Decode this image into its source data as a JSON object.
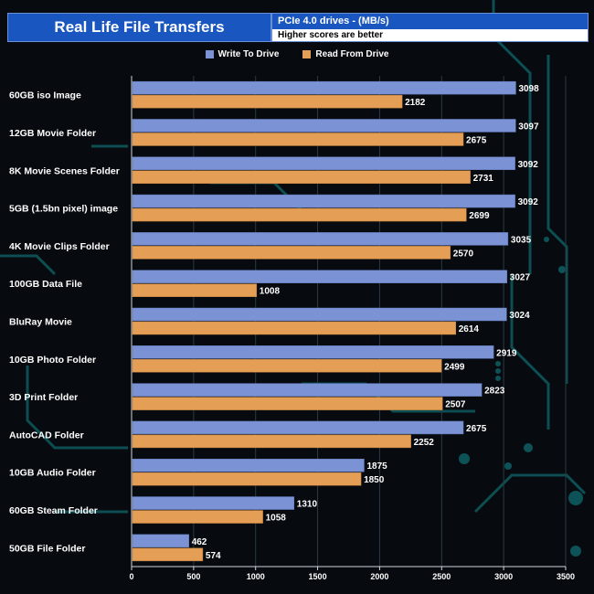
{
  "header": {
    "title": "Real Life File Transfers",
    "subtitle_top": "PCIe 4.0 drives - (MB/s)",
    "subtitle_bottom": "Higher scores are better"
  },
  "colors": {
    "write": "#7b93d4",
    "read": "#e59e55",
    "accent": "#1a56bf",
    "grid": "#2a3a44",
    "circuit": "#0d5a5e"
  },
  "chart_data": {
    "type": "bar",
    "orientation": "horizontal",
    "title": "Real Life File Transfers",
    "xlim": [
      0,
      3500
    ],
    "xticks": [
      0,
      500,
      1000,
      1500,
      2000,
      2500,
      3000,
      3500
    ],
    "legend_position": "top-center",
    "categories": [
      "60GB iso Image",
      "12GB Movie Folder",
      "8K Movie Scenes Folder",
      "5GB (1.5bn pixel) image",
      "4K Movie Clips Folder",
      "100GB Data File",
      "BluRay Movie",
      "10GB Photo Folder",
      "3D Print Folder",
      "AutoCAD Folder",
      "10GB Audio Folder",
      "60GB Steam Folder",
      "50GB File Folder"
    ],
    "series": [
      {
        "name": "Write To  Drive",
        "values": [
          3098,
          3097,
          3092,
          3092,
          3035,
          3027,
          3024,
          2919,
          2823,
          2675,
          1875,
          1310,
          462
        ]
      },
      {
        "name": "Read From  Drive",
        "values": [
          2182,
          2675,
          2731,
          2699,
          2570,
          1008,
          2614,
          2499,
          2507,
          2252,
          1850,
          1058,
          574
        ]
      }
    ]
  }
}
